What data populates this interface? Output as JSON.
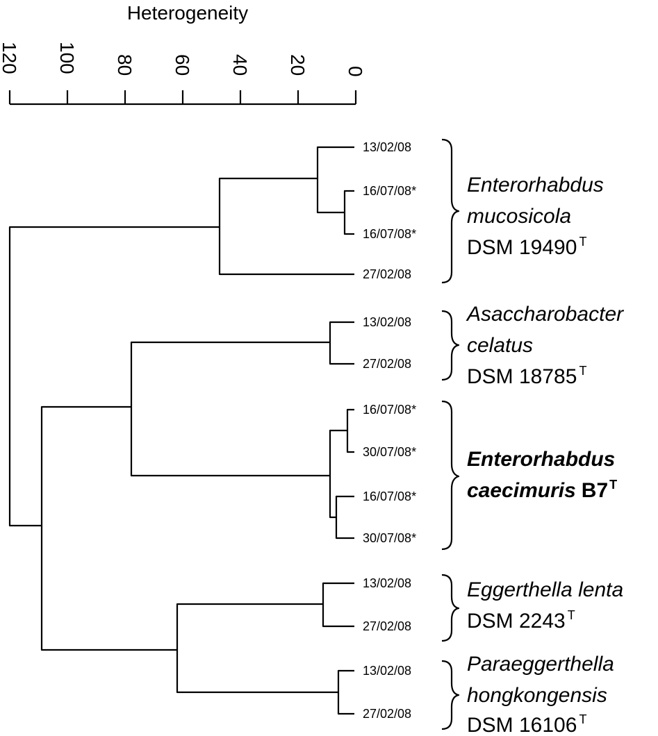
{
  "axis": {
    "title": "Heterogeneity",
    "ticks": [
      "120",
      "100",
      "80",
      "60",
      "40",
      "20",
      "0"
    ]
  },
  "leaves": [
    "13/02/08",
    "16/07/08*",
    "16/07/08*",
    "27/02/08",
    "13/02/08",
    "27/02/08",
    "16/07/08*",
    "30/07/08*",
    "16/07/08*",
    "30/07/08*",
    "13/02/08",
    "27/02/08",
    "13/02/08",
    "27/02/08"
  ],
  "groups": [
    {
      "italic": [
        "Enterorhabdus",
        "mucosicola"
      ],
      "strain": "DSM 19490",
      "sup": "T",
      "bold": false
    },
    {
      "italic": [
        "Asaccharobacter",
        "celatus"
      ],
      "strain": "DSM 18785",
      "sup": "T",
      "bold": false
    },
    {
      "italic": [
        "Enterorhabdus"
      ],
      "italic_suffix_line": "caecimuris",
      "strain": "B7",
      "sup": "T",
      "bold": true
    },
    {
      "italic": [
        "Eggerthella lenta"
      ],
      "strain": "DSM 2243",
      "sup": "T",
      "bold": false
    },
    {
      "italic": [
        "Paraeggerthella",
        "hongkongensis"
      ],
      "strain": "DSM 16106",
      "sup": "T",
      "bold": false
    }
  ]
}
